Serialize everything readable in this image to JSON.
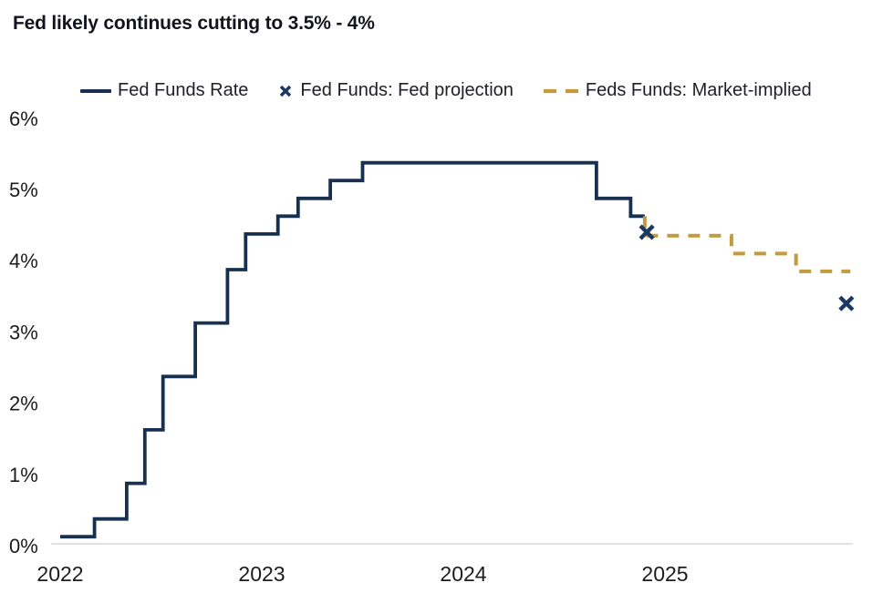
{
  "page": {
    "title": "Fed likely continues cutting to 3.5% - 4%"
  },
  "colors": {
    "navy_line": "#17304F",
    "navy_marker": "#1B3862",
    "gold_dashed": "#C29B3C",
    "axis_line": "#D9D9D9",
    "tick_text": "#1c1c1c",
    "title_text": "#14141e"
  },
  "legend": [
    {
      "label": "Fed Funds Rate",
      "type": "line",
      "color": "#17304F"
    },
    {
      "label": "Fed Funds: Fed projection",
      "type": "x-marker",
      "color": "#1B3862"
    },
    {
      "label": "Feds Funds: Market-implied",
      "type": "dashed",
      "color": "#C29B3C"
    }
  ],
  "chart_data": {
    "type": "line",
    "title": "Fed likely continues cutting to 3.5% - 4%",
    "xlabel": "",
    "ylabel": "",
    "grid": false,
    "legend_position": "top",
    "x_axis": {
      "ticks": [
        2022,
        2023,
        2024,
        2025
      ],
      "tick_labels": [
        "2022",
        "2023",
        "2024",
        "2025"
      ],
      "range": [
        2022.0,
        2025.95
      ]
    },
    "y_axis": {
      "tick_values": [
        0,
        1,
        2,
        3,
        4,
        5,
        6
      ],
      "tick_labels": [
        "0%",
        "1%",
        "2%",
        "3%",
        "4%",
        "5%",
        "6%"
      ],
      "range": [
        0,
        6
      ],
      "unit": "percent"
    },
    "series": [
      {
        "name": "Fed Funds Rate",
        "style": "step-solid",
        "color": "#17304F",
        "points": [
          {
            "x": 2022.0,
            "v": 0.125
          },
          {
            "x": 2022.17,
            "v": 0.375
          },
          {
            "x": 2022.33,
            "v": 0.875
          },
          {
            "x": 2022.42,
            "v": 1.625
          },
          {
            "x": 2022.51,
            "v": 2.375
          },
          {
            "x": 2022.67,
            "v": 3.125
          },
          {
            "x": 2022.83,
            "v": 3.875
          },
          {
            "x": 2022.92,
            "v": 4.375
          },
          {
            "x": 2023.08,
            "v": 4.625
          },
          {
            "x": 2023.18,
            "v": 4.875
          },
          {
            "x": 2023.34,
            "v": 5.125
          },
          {
            "x": 2023.5,
            "v": 5.375
          },
          {
            "x": 2024.66,
            "v": 4.875
          },
          {
            "x": 2024.83,
            "v": 4.625
          }
        ],
        "end_x": 2024.9
      },
      {
        "name": "Feds Funds: Market-implied",
        "style": "step-dashed",
        "color": "#C29B3C",
        "points": [
          {
            "x": 2024.9,
            "v": 4.625
          },
          {
            "x": 2024.9,
            "v": 4.35
          },
          {
            "x": 2025.33,
            "v": 4.1
          },
          {
            "x": 2025.65,
            "v": 3.85
          }
        ],
        "end_x": 2025.92
      },
      {
        "name": "Fed Funds: Fed projection",
        "style": "x-markers",
        "color": "#1B3862",
        "points": [
          {
            "x": 2024.91,
            "v": 4.4
          },
          {
            "x": 2025.9,
            "v": 3.4
          }
        ]
      }
    ]
  }
}
